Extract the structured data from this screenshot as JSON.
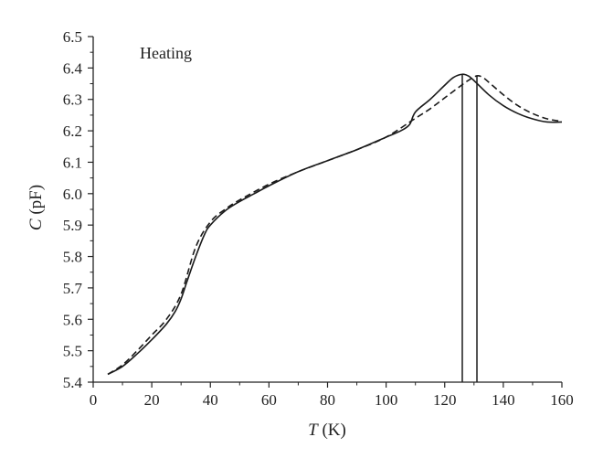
{
  "chart_data": {
    "type": "line",
    "title": "",
    "annotation": "Heating",
    "xlabel": {
      "symbol": "T",
      "unit": " (K)"
    },
    "ylabel": {
      "symbol": "C",
      "unit": " (pF)"
    },
    "xlim": [
      0,
      160
    ],
    "ylim": [
      5.4,
      6.5
    ],
    "xticks": [
      "0",
      "20",
      "40",
      "60",
      "80",
      "100",
      "120",
      "140",
      "160"
    ],
    "yticks": [
      "5.4",
      "5.5",
      "5.6",
      "5.7",
      "5.8",
      "5.9",
      "6.0",
      "6.1",
      "6.2",
      "6.3",
      "6.4",
      "6.5"
    ],
    "grid": false,
    "legend": "none",
    "series": [
      {
        "style": "solid",
        "color": "#1a1a1a",
        "x": [
          5,
          10,
          15,
          20,
          25,
          28,
          30,
          32,
          35,
          38,
          40,
          45,
          50,
          55,
          60,
          70,
          80,
          90,
          100,
          105,
          108,
          110,
          115,
          120,
          123,
          126,
          128,
          130,
          135,
          140,
          145,
          150,
          155,
          160
        ],
        "y": [
          5.425,
          5.45,
          5.49,
          5.535,
          5.585,
          5.625,
          5.665,
          5.72,
          5.8,
          5.87,
          5.9,
          5.945,
          5.975,
          6.0,
          6.025,
          6.07,
          6.105,
          6.14,
          6.18,
          6.2,
          6.22,
          6.26,
          6.3,
          6.345,
          6.37,
          6.38,
          6.375,
          6.36,
          6.315,
          6.28,
          6.255,
          6.238,
          6.228,
          6.228
        ]
      },
      {
        "style": "dashed",
        "color": "#1a1a1a",
        "x": [
          5,
          10,
          15,
          20,
          25,
          30,
          35,
          40,
          45,
          50,
          60,
          70,
          80,
          90,
          100,
          110,
          115,
          120,
          125,
          128,
          131,
          133,
          135,
          140,
          145,
          150,
          155,
          160
        ],
        "y": [
          5.425,
          5.455,
          5.5,
          5.55,
          5.6,
          5.68,
          5.83,
          5.91,
          5.95,
          5.98,
          6.03,
          6.07,
          6.105,
          6.14,
          6.18,
          6.24,
          6.27,
          6.305,
          6.34,
          6.36,
          6.375,
          6.37,
          6.355,
          6.315,
          6.28,
          6.255,
          6.238,
          6.23
        ]
      }
    ],
    "vertical_markers": [
      {
        "x": 126,
        "from": 5.4,
        "to": 6.38
      },
      {
        "x": 131,
        "from": 5.4,
        "to": 6.375
      }
    ]
  }
}
